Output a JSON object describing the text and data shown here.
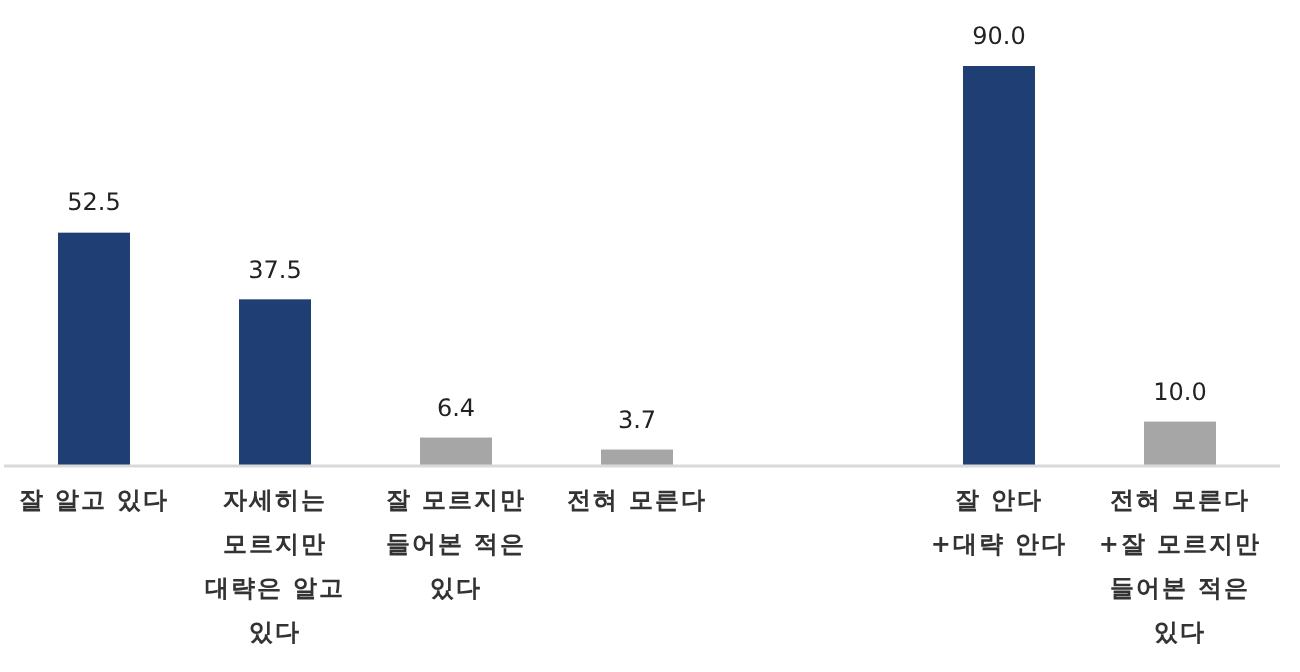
{
  "chart_data": {
    "type": "bar",
    "categories": [
      "잘 알고 있다",
      "자세히는 모르지만 대략은 알고 있다",
      "잘 모르지만 들어본 적은 있다",
      "전혀 모른다",
      null,
      "잘 안다\n+대략 안다",
      "전혀 모른다\n+잘 모르지만 들어본 적은 있다"
    ],
    "values": [
      52.5,
      37.5,
      6.4,
      3.7,
      null,
      90.0,
      10.0
    ],
    "value_labels": [
      "52.5",
      "37.5",
      "6.4",
      "3.7",
      null,
      "90.0",
      "10.0"
    ],
    "colors": [
      "#1f3f74",
      "#1f3f74",
      "#a6a6a6",
      "#a6a6a6",
      null,
      "#1f3f74",
      "#a6a6a6"
    ]
  }
}
